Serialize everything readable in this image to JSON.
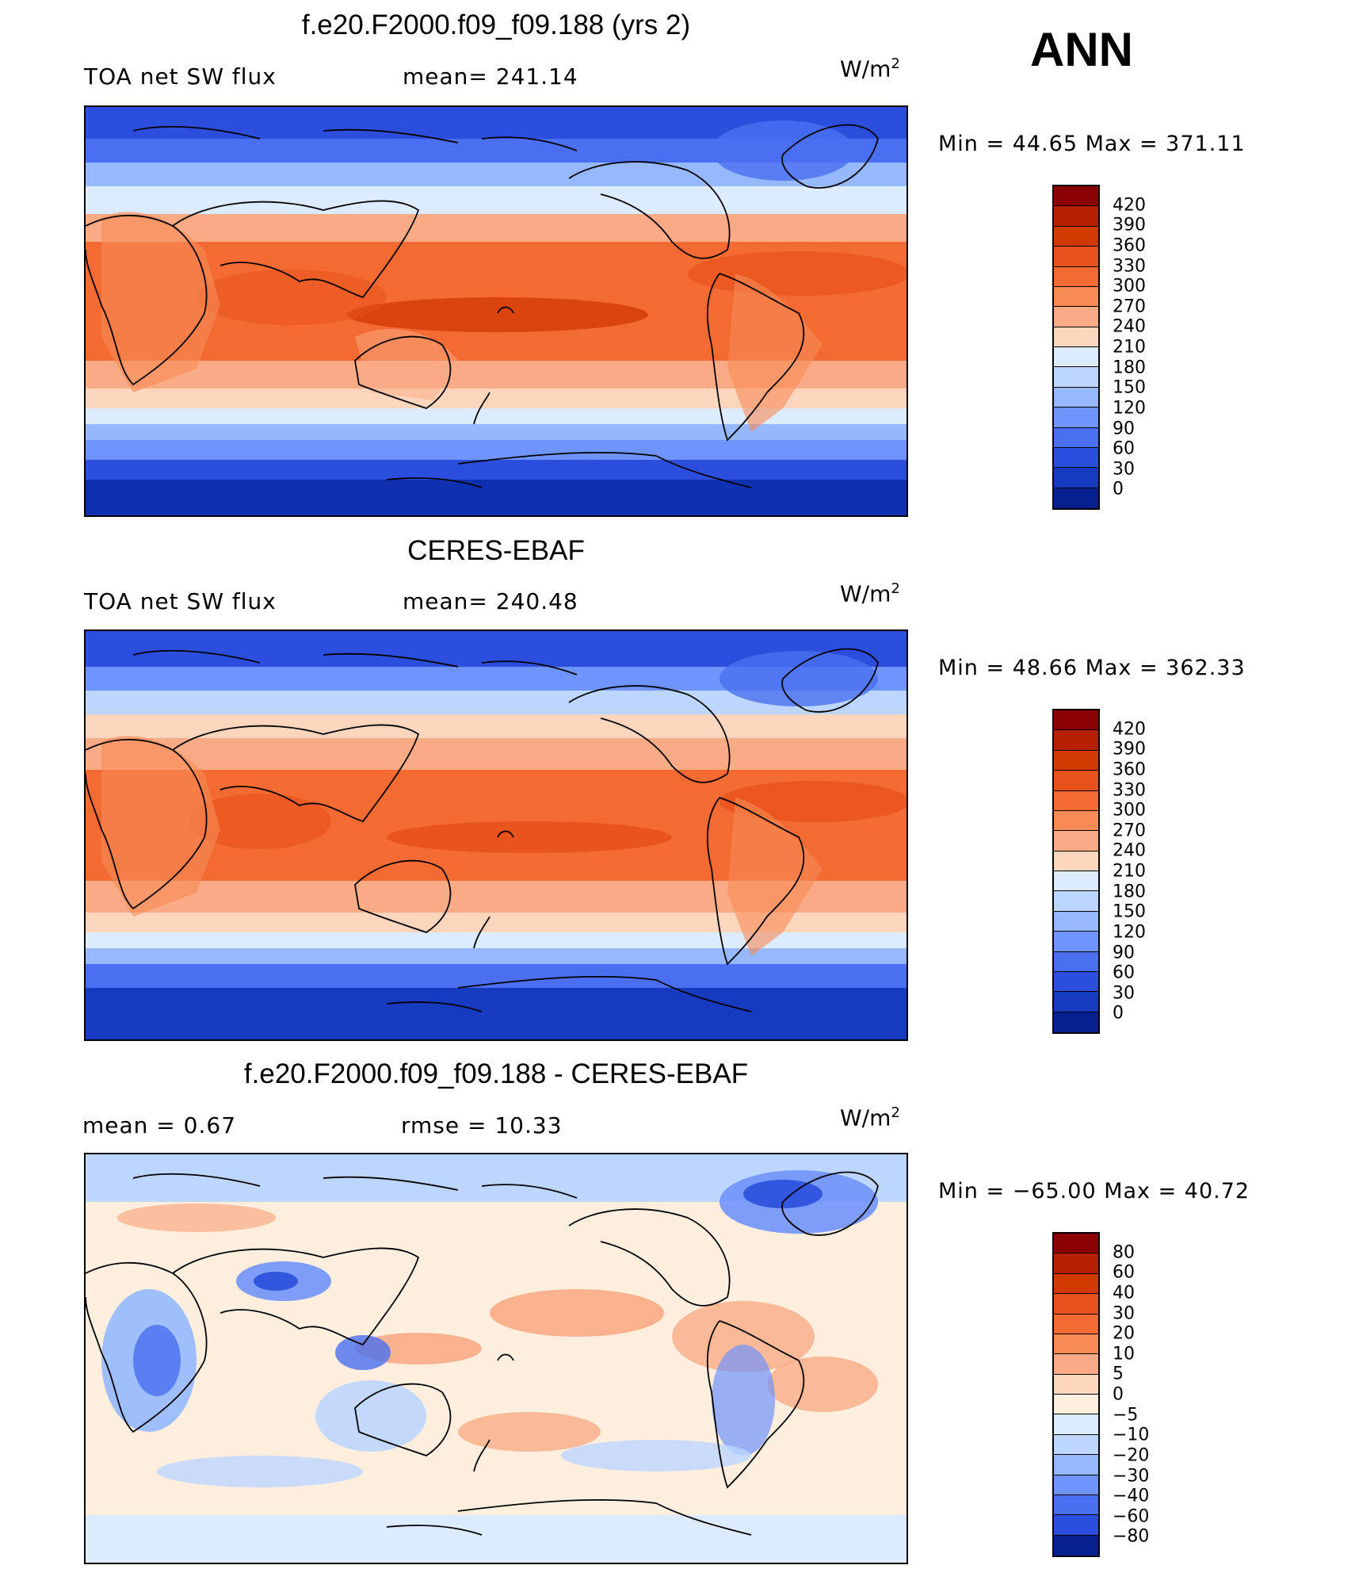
{
  "season": "ANN",
  "panels": [
    {
      "title": "f.e20.F2000.f09_f09.188 (yrs 2)",
      "variable": "TOA net SW flux",
      "stat1": "mean=  241.14",
      "stat2": "",
      "units": "W/m",
      "units_exp": "2",
      "minmax": "Min  =    44.65  Max  =  371.11",
      "colorbar": {
        "levels": [
          "420",
          "390",
          "360",
          "330",
          "300",
          "270",
          "240",
          "210",
          "180",
          "150",
          "120",
          "90",
          "60",
          "30",
          "0"
        ],
        "colors": [
          "#8b0000",
          "#b42000",
          "#d03a00",
          "#e8521a",
          "#f36a32",
          "#f78a55",
          "#f9ab85",
          "#fcd5bd",
          "#dcebff",
          "#bcd6ff",
          "#95b8ff",
          "#6f94fb",
          "#4a6ff0",
          "#2b4fdc",
          "#163ac0",
          "#06218f"
        ]
      }
    },
    {
      "title": "CERES-EBAF",
      "variable": "TOA net SW flux",
      "stat1": "mean=  240.48",
      "stat2": "",
      "units": "W/m",
      "units_exp": "2",
      "minmax": "Min  =    48.66  Max  =  362.33",
      "colorbar": {
        "levels": [
          "420",
          "390",
          "360",
          "330",
          "300",
          "270",
          "240",
          "210",
          "180",
          "150",
          "120",
          "90",
          "60",
          "30",
          "0"
        ],
        "colors": [
          "#8b0000",
          "#b42000",
          "#d03a00",
          "#e8521a",
          "#f36a32",
          "#f78a55",
          "#f9ab85",
          "#fcd5bd",
          "#dcebff",
          "#bcd6ff",
          "#95b8ff",
          "#6f94fb",
          "#4a6ff0",
          "#2b4fdc",
          "#163ac0",
          "#06218f"
        ]
      }
    },
    {
      "title": "f.e20.F2000.f09_f09.188 - CERES-EBAF",
      "variable": "mean  =      0.67",
      "stat1": "rmse  =     10.33",
      "stat2": "",
      "units": "W/m",
      "units_exp": "2",
      "minmax": "Min  = −65.00  Max  =    40.72",
      "colorbar": {
        "levels": [
          "80",
          "60",
          "40",
          "30",
          "20",
          "10",
          "5",
          "0",
          "−5",
          "−10",
          "−20",
          "−30",
          "−40",
          "−60",
          "−80"
        ],
        "colors": [
          "#8b0000",
          "#b42000",
          "#d03a00",
          "#e8521a",
          "#f36a32",
          "#f78a55",
          "#f9ab85",
          "#fcd5bd",
          "#fdeede",
          "#dcebff",
          "#bcd6ff",
          "#95b8ff",
          "#6f94fb",
          "#4a6ff0",
          "#2b4fdc",
          "#06218f"
        ]
      }
    }
  ]
}
